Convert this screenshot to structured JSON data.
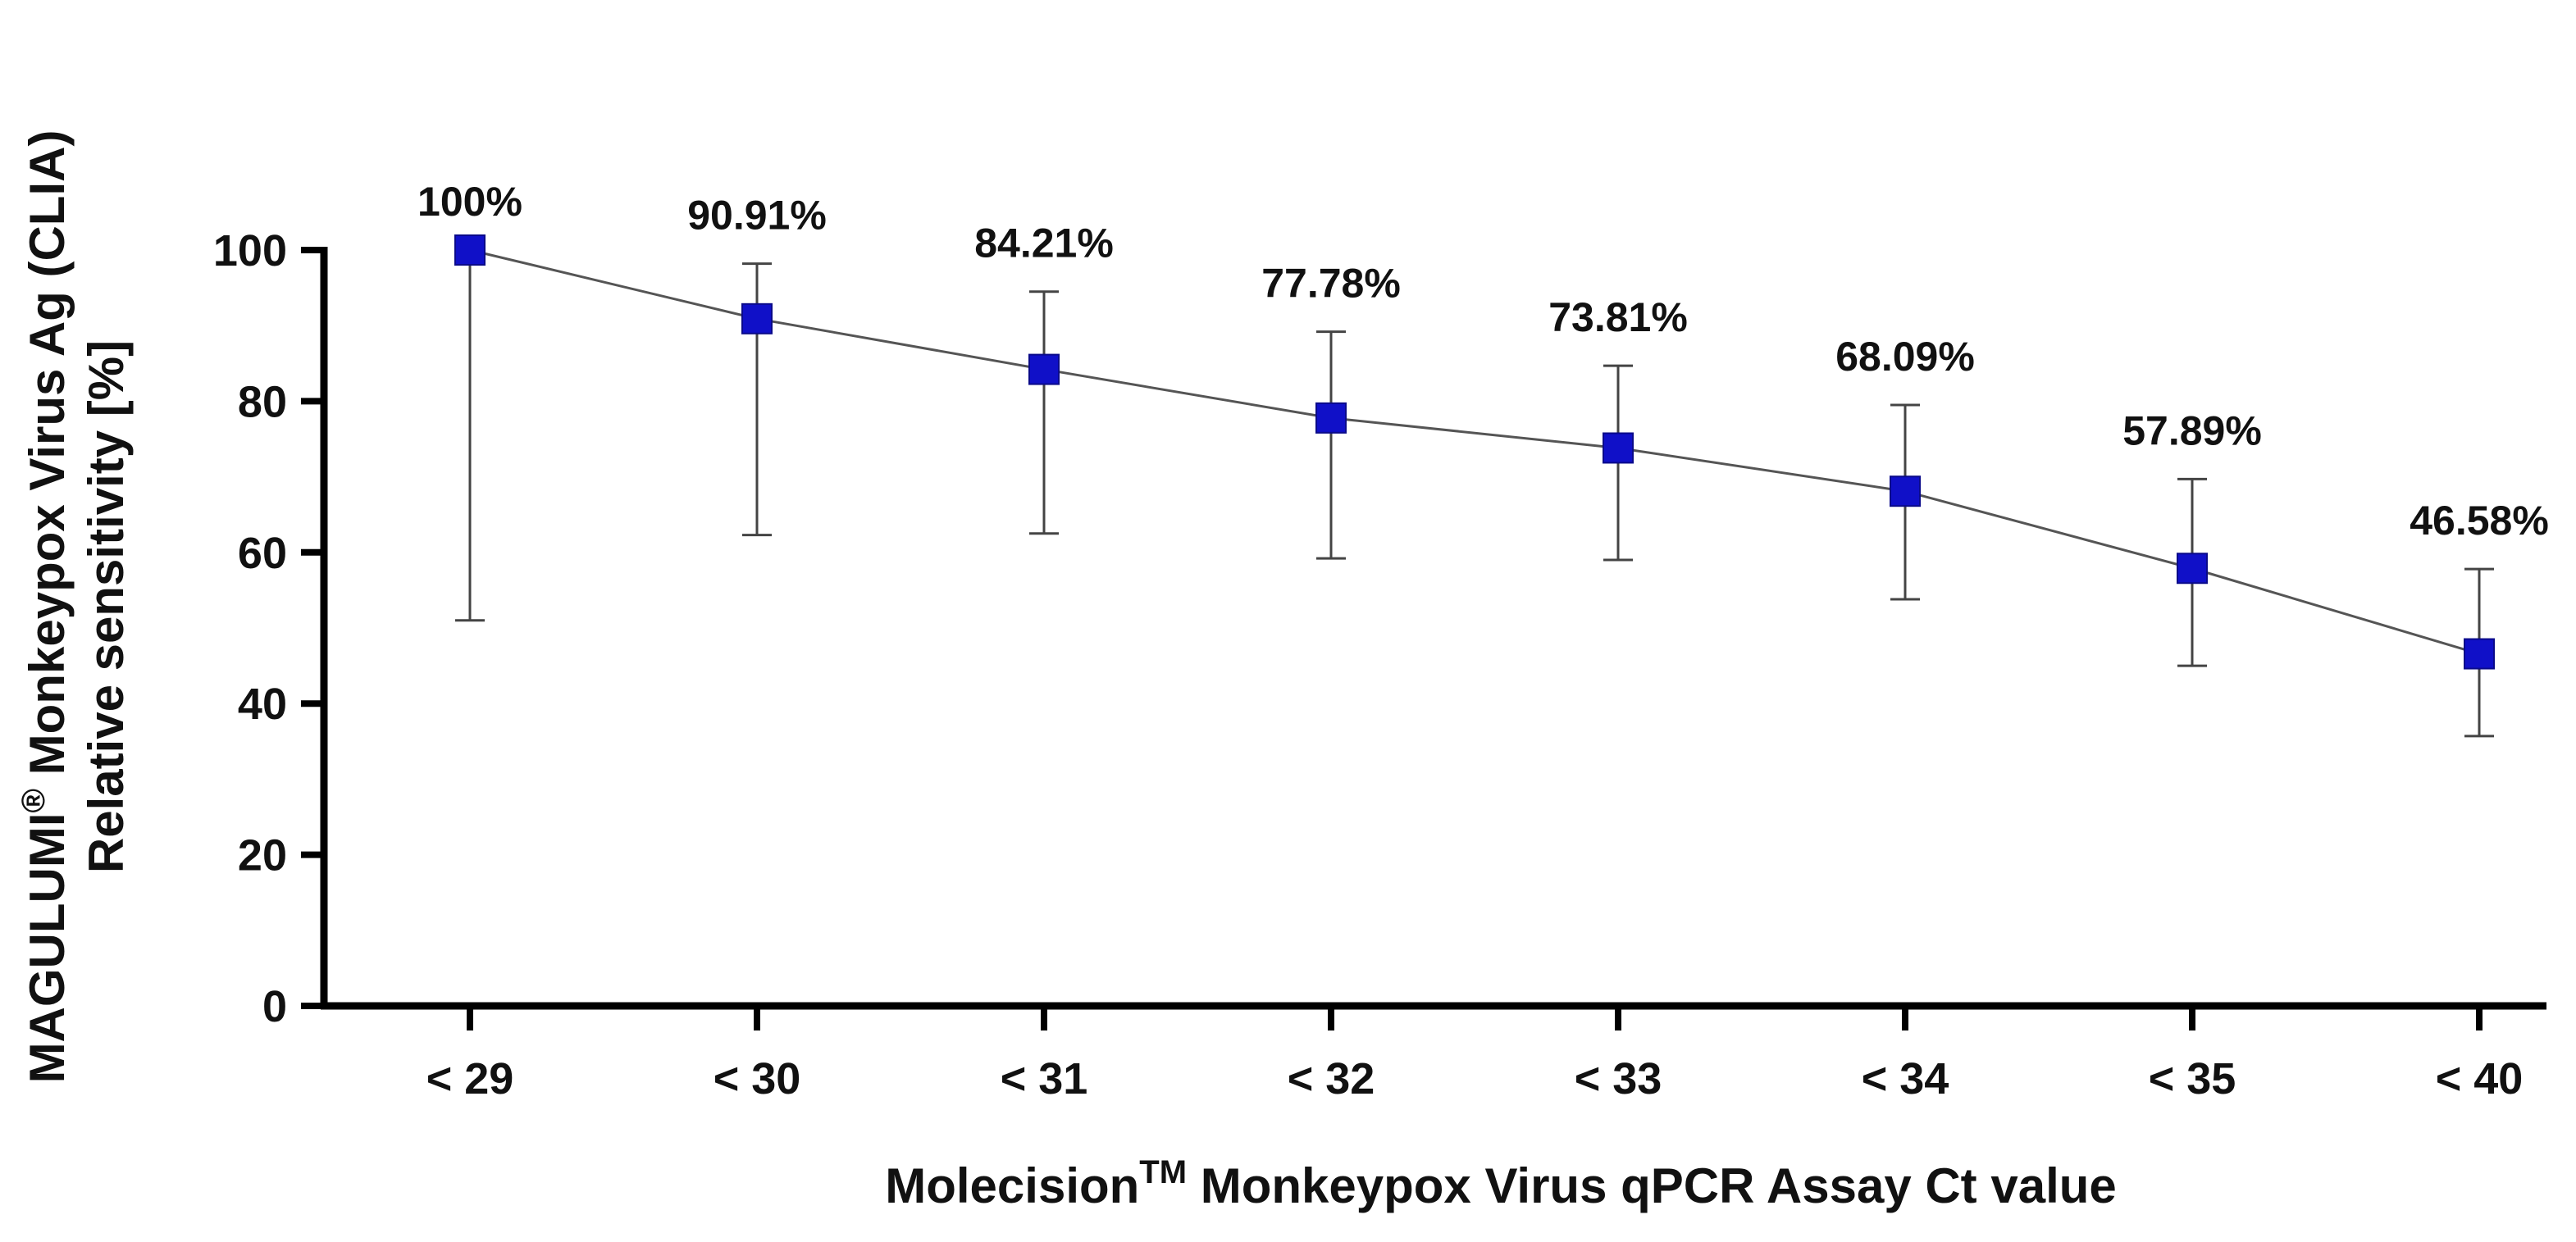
{
  "chart_data": {
    "type": "line",
    "title": "",
    "xlabel": {
      "main": "Molecision",
      "superscript": "TM",
      "rest": " Monkeypox Virus qPCR Assay Ct value"
    },
    "ylabel": {
      "line1_main": "MAGULUMI",
      "line1_superscript": "®",
      "line1_rest": " Monkeypox Virus Ag (CLIA)",
      "line2": "Relative sensitivity [%]"
    },
    "categories": [
      "< 29",
      "< 30",
      "< 31",
      "< 32",
      "< 33",
      "< 34",
      "< 35",
      "< 40"
    ],
    "series": [
      {
        "name": "Relative sensitivity",
        "values": [
          100,
          90.91,
          84.21,
          77.78,
          73.81,
          68.09,
          57.89,
          46.58
        ],
        "ci_lower": [
          51,
          62.3,
          62.5,
          59.2,
          59,
          53.8,
          45,
          35.7
        ],
        "ci_upper": [
          100,
          98.2,
          94.5,
          89.2,
          84.7,
          79.5,
          69.7,
          57.8
        ],
        "data_labels": [
          "100%",
          "90.91%",
          "84.21%",
          "77.78%",
          "73.81%",
          "68.09%",
          "57.89%",
          "46.58%"
        ]
      }
    ],
    "ylim": [
      0,
      100
    ],
    "yticks": [
      0,
      20,
      40,
      60,
      80,
      100
    ],
    "ytick_labels": [
      "0",
      "20",
      "40",
      "60",
      "80",
      "100"
    ],
    "grid": false,
    "colors": {
      "marker": "#1010c8",
      "marker_edge": "#0a0a8a",
      "line": "#555555",
      "error_bar": "#444444",
      "axis": "#000000"
    }
  }
}
